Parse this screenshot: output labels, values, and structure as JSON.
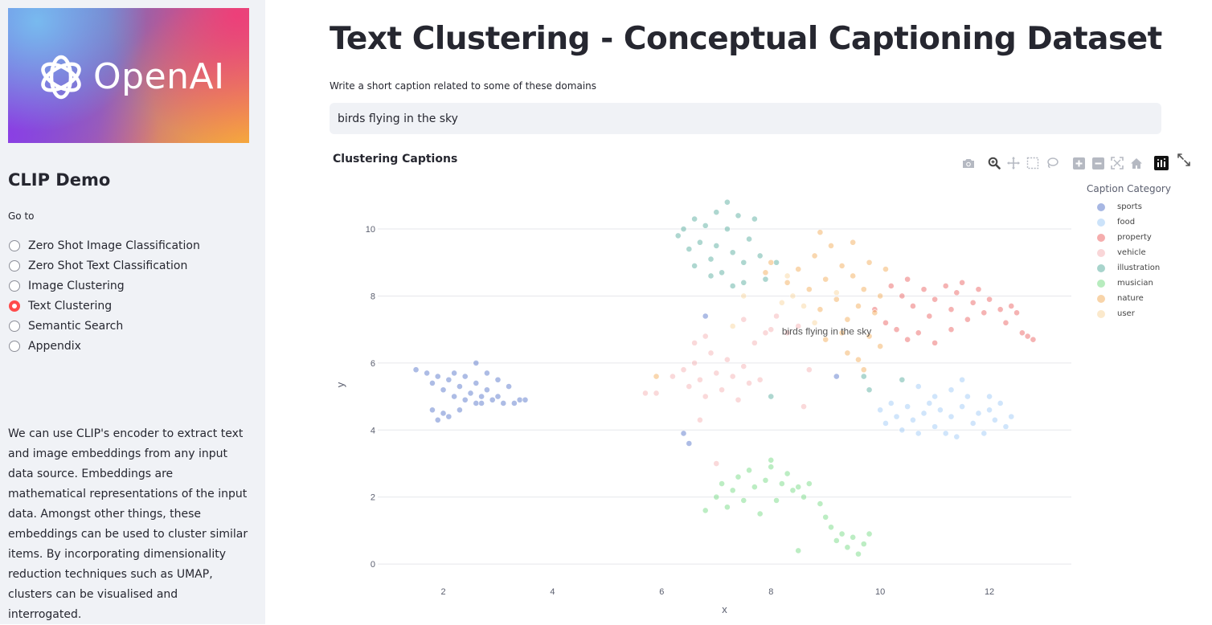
{
  "sidebar": {
    "logo_text": "OpenAI",
    "title": "CLIP Demo",
    "goto_label": "Go to",
    "nav": [
      {
        "label": "Zero Shot Image Classification",
        "selected": false
      },
      {
        "label": "Zero Shot Text Classification",
        "selected": false
      },
      {
        "label": "Image Clustering",
        "selected": false
      },
      {
        "label": "Text Clustering",
        "selected": true
      },
      {
        "label": "Semantic Search",
        "selected": false
      },
      {
        "label": "Appendix",
        "selected": false
      }
    ],
    "description": "We can use CLIP's encoder to extract text and image embeddings from any input data source. Embeddings are mathematical representations of the input data. Amongst other things, these embeddings can be used to cluster similar items. By incorporating dimensionality reduction techniques such as UMAP, clusters can be visualised and interrogated."
  },
  "main": {
    "title": "Text Clustering - Conceptual Captioning Dataset",
    "input_label": "Write a short caption related to some of these domains",
    "input_value": "birds flying in the sky"
  },
  "chart": {
    "title": "Clustering Captions",
    "modebar": [
      "camera-icon",
      "zoom-icon",
      "pan-icon",
      "box-select-icon",
      "lasso-select-icon",
      "zoom-in-icon",
      "zoom-out-icon",
      "autoscale-icon",
      "reset-axes-icon",
      "plotly-logo-icon"
    ]
  },
  "chart_data": {
    "type": "scatter",
    "title": "Clustering Captions",
    "xlabel": "x",
    "ylabel": "y",
    "xlim": [
      0.8,
      13.5
    ],
    "ylim": [
      -0.5,
      11.2
    ],
    "xticks": [
      2,
      4,
      6,
      8,
      10,
      12
    ],
    "yticks": [
      0,
      2,
      4,
      6,
      8,
      10
    ],
    "grid": true,
    "legend_title": "Caption Category",
    "legend_position": "right",
    "annotation": {
      "text": "birds flying in the sky",
      "x": 8.2,
      "y": 6.85
    },
    "series": [
      {
        "name": "sports",
        "color": "#3b5fc0",
        "points": [
          [
            1.5,
            5.8
          ],
          [
            1.7,
            5.7
          ],
          [
            1.8,
            5.4
          ],
          [
            1.9,
            5.6
          ],
          [
            2.0,
            5.2
          ],
          [
            2.1,
            5.5
          ],
          [
            2.2,
            5.0
          ],
          [
            2.2,
            5.7
          ],
          [
            2.3,
            5.3
          ],
          [
            2.4,
            4.9
          ],
          [
            2.4,
            5.6
          ],
          [
            2.5,
            5.1
          ],
          [
            2.6,
            5.4
          ],
          [
            2.6,
            6.0
          ],
          [
            2.7,
            4.8
          ],
          [
            2.7,
            5.0
          ],
          [
            2.8,
            5.2
          ],
          [
            2.8,
            5.7
          ],
          [
            2.9,
            4.9
          ],
          [
            3.0,
            5.5
          ],
          [
            3.0,
            5.0
          ],
          [
            3.1,
            4.8
          ],
          [
            3.2,
            5.3
          ],
          [
            3.3,
            4.8
          ],
          [
            3.4,
            4.9
          ],
          [
            3.5,
            4.9
          ],
          [
            2.0,
            4.5
          ],
          [
            1.9,
            4.3
          ],
          [
            2.1,
            4.4
          ],
          [
            1.8,
            4.6
          ],
          [
            2.3,
            4.6
          ],
          [
            2.6,
            4.8
          ],
          [
            6.4,
            3.9
          ],
          [
            6.5,
            3.6
          ],
          [
            6.8,
            7.4
          ],
          [
            9.2,
            5.6
          ]
        ]
      },
      {
        "name": "food",
        "color": "#8ec0f5",
        "points": [
          [
            10.0,
            4.6
          ],
          [
            10.1,
            4.2
          ],
          [
            10.2,
            4.8
          ],
          [
            10.3,
            4.4
          ],
          [
            10.4,
            4.0
          ],
          [
            10.5,
            4.7
          ],
          [
            10.6,
            4.3
          ],
          [
            10.7,
            3.9
          ],
          [
            10.8,
            4.5
          ],
          [
            10.9,
            4.8
          ],
          [
            11.0,
            4.1
          ],
          [
            11.1,
            4.6
          ],
          [
            11.2,
            3.9
          ],
          [
            11.3,
            4.4
          ],
          [
            11.4,
            3.8
          ],
          [
            11.5,
            4.7
          ],
          [
            11.6,
            5.0
          ],
          [
            11.7,
            4.2
          ],
          [
            11.8,
            4.5
          ],
          [
            11.9,
            3.9
          ],
          [
            12.0,
            4.6
          ],
          [
            12.1,
            4.3
          ],
          [
            12.2,
            4.8
          ],
          [
            12.3,
            4.1
          ],
          [
            12.4,
            4.4
          ],
          [
            11.3,
            5.2
          ],
          [
            11.0,
            5.0
          ],
          [
            10.7,
            5.3
          ],
          [
            11.5,
            5.5
          ],
          [
            12.0,
            5.0
          ]
        ]
      },
      {
        "name": "property",
        "color": "#e8494a",
        "points": [
          [
            10.2,
            8.3
          ],
          [
            10.4,
            8.0
          ],
          [
            10.5,
            8.5
          ],
          [
            10.6,
            7.7
          ],
          [
            10.8,
            8.2
          ],
          [
            10.9,
            7.4
          ],
          [
            11.0,
            7.9
          ],
          [
            11.2,
            8.3
          ],
          [
            11.3,
            7.6
          ],
          [
            11.4,
            8.1
          ],
          [
            11.6,
            7.3
          ],
          [
            11.7,
            7.8
          ],
          [
            11.8,
            8.2
          ],
          [
            11.9,
            7.5
          ],
          [
            12.0,
            7.9
          ],
          [
            12.2,
            7.6
          ],
          [
            12.3,
            7.2
          ],
          [
            12.4,
            7.7
          ],
          [
            12.5,
            7.5
          ],
          [
            12.7,
            6.8
          ],
          [
            12.8,
            6.7
          ],
          [
            12.6,
            6.9
          ],
          [
            10.3,
            7.0
          ],
          [
            10.5,
            6.7
          ],
          [
            10.7,
            6.9
          ],
          [
            11.0,
            6.6
          ],
          [
            11.3,
            7.0
          ],
          [
            9.9,
            7.6
          ],
          [
            10.1,
            7.2
          ],
          [
            11.5,
            8.4
          ]
        ]
      },
      {
        "name": "vehicle",
        "color": "#f2a5a8",
        "points": [
          [
            6.2,
            5.6
          ],
          [
            6.4,
            5.8
          ],
          [
            6.5,
            5.3
          ],
          [
            6.6,
            6.0
          ],
          [
            6.7,
            5.5
          ],
          [
            6.8,
            5.0
          ],
          [
            6.9,
            6.3
          ],
          [
            7.0,
            5.7
          ],
          [
            7.1,
            5.2
          ],
          [
            7.2,
            6.1
          ],
          [
            7.3,
            5.6
          ],
          [
            7.4,
            4.9
          ],
          [
            7.5,
            5.9
          ],
          [
            7.6,
            5.4
          ],
          [
            7.7,
            6.6
          ],
          [
            7.8,
            5.5
          ],
          [
            7.9,
            6.9
          ],
          [
            8.0,
            7.0
          ],
          [
            8.3,
            6.9
          ],
          [
            8.5,
            7.1
          ],
          [
            6.6,
            6.6
          ],
          [
            6.8,
            6.8
          ],
          [
            5.7,
            5.1
          ],
          [
            5.9,
            5.1
          ],
          [
            6.7,
            4.3
          ],
          [
            8.7,
            5.8
          ],
          [
            7.5,
            7.3
          ],
          [
            8.1,
            7.4
          ],
          [
            7.0,
            3.0
          ],
          [
            8.6,
            4.7
          ]
        ]
      },
      {
        "name": "illustration",
        "color": "#3f9f8f",
        "points": [
          [
            6.3,
            9.8
          ],
          [
            6.4,
            10.0
          ],
          [
            6.5,
            9.4
          ],
          [
            6.6,
            10.3
          ],
          [
            6.6,
            8.9
          ],
          [
            6.7,
            9.6
          ],
          [
            6.8,
            10.1
          ],
          [
            6.9,
            9.1
          ],
          [
            7.0,
            10.5
          ],
          [
            7.0,
            9.5
          ],
          [
            7.1,
            8.7
          ],
          [
            7.2,
            10.0
          ],
          [
            7.2,
            10.8
          ],
          [
            7.3,
            9.3
          ],
          [
            7.4,
            10.4
          ],
          [
            7.5,
            9.0
          ],
          [
            7.5,
            8.4
          ],
          [
            7.6,
            9.7
          ],
          [
            7.7,
            10.3
          ],
          [
            7.8,
            9.2
          ],
          [
            7.3,
            8.3
          ],
          [
            6.9,
            8.6
          ],
          [
            7.9,
            8.5
          ],
          [
            8.1,
            9.0
          ],
          [
            8.0,
            5.0
          ],
          [
            9.7,
            5.6
          ],
          [
            9.8,
            5.2
          ],
          [
            10.4,
            5.5
          ]
        ]
      },
      {
        "name": "musician",
        "color": "#5fd46f",
        "points": [
          [
            6.8,
            1.6
          ],
          [
            7.0,
            2.0
          ],
          [
            7.1,
            2.4
          ],
          [
            7.2,
            1.7
          ],
          [
            7.3,
            2.2
          ],
          [
            7.4,
            2.6
          ],
          [
            7.5,
            1.9
          ],
          [
            7.6,
            2.8
          ],
          [
            7.7,
            2.3
          ],
          [
            7.8,
            1.5
          ],
          [
            7.9,
            2.5
          ],
          [
            8.0,
            2.9
          ],
          [
            8.1,
            1.9
          ],
          [
            8.2,
            2.4
          ],
          [
            8.3,
            2.7
          ],
          [
            8.4,
            2.2
          ],
          [
            8.5,
            2.3
          ],
          [
            8.6,
            2.0
          ],
          [
            8.7,
            2.4
          ],
          [
            8.9,
            1.8
          ],
          [
            9.0,
            1.4
          ],
          [
            9.1,
            1.1
          ],
          [
            9.2,
            0.7
          ],
          [
            9.3,
            0.9
          ],
          [
            9.4,
            0.5
          ],
          [
            9.5,
            0.8
          ],
          [
            9.6,
            0.3
          ],
          [
            9.7,
            0.6
          ],
          [
            9.8,
            0.9
          ],
          [
            8.5,
            0.4
          ],
          [
            8.0,
            3.1
          ]
        ]
      },
      {
        "name": "nature",
        "color": "#f0a040",
        "points": [
          [
            8.5,
            8.8
          ],
          [
            8.7,
            8.2
          ],
          [
            8.8,
            9.2
          ],
          [
            8.9,
            7.6
          ],
          [
            9.0,
            8.5
          ],
          [
            9.1,
            9.5
          ],
          [
            9.2,
            7.9
          ],
          [
            9.3,
            8.9
          ],
          [
            9.4,
            7.3
          ],
          [
            9.5,
            8.6
          ],
          [
            9.5,
            9.6
          ],
          [
            9.6,
            7.7
          ],
          [
            9.7,
            8.2
          ],
          [
            9.8,
            6.8
          ],
          [
            9.8,
            9.0
          ],
          [
            9.9,
            7.5
          ],
          [
            10.0,
            8.0
          ],
          [
            10.0,
            6.5
          ],
          [
            9.6,
            6.1
          ],
          [
            9.7,
            5.8
          ],
          [
            9.4,
            6.3
          ],
          [
            9.3,
            6.9
          ],
          [
            9.0,
            6.7
          ],
          [
            8.0,
            9.0
          ],
          [
            7.9,
            8.7
          ],
          [
            8.3,
            8.4
          ],
          [
            10.1,
            8.8
          ],
          [
            5.9,
            5.6
          ],
          [
            8.9,
            9.9
          ]
        ]
      },
      {
        "name": "user",
        "color": "#f7cf8e",
        "points": [
          [
            8.4,
            8.0
          ],
          [
            8.6,
            7.7
          ],
          [
            8.8,
            7.2
          ],
          [
            8.3,
            8.6
          ],
          [
            9.2,
            8.1
          ],
          [
            7.5,
            8.0
          ],
          [
            7.3,
            7.1
          ],
          [
            8.2,
            7.8
          ]
        ]
      }
    ]
  }
}
